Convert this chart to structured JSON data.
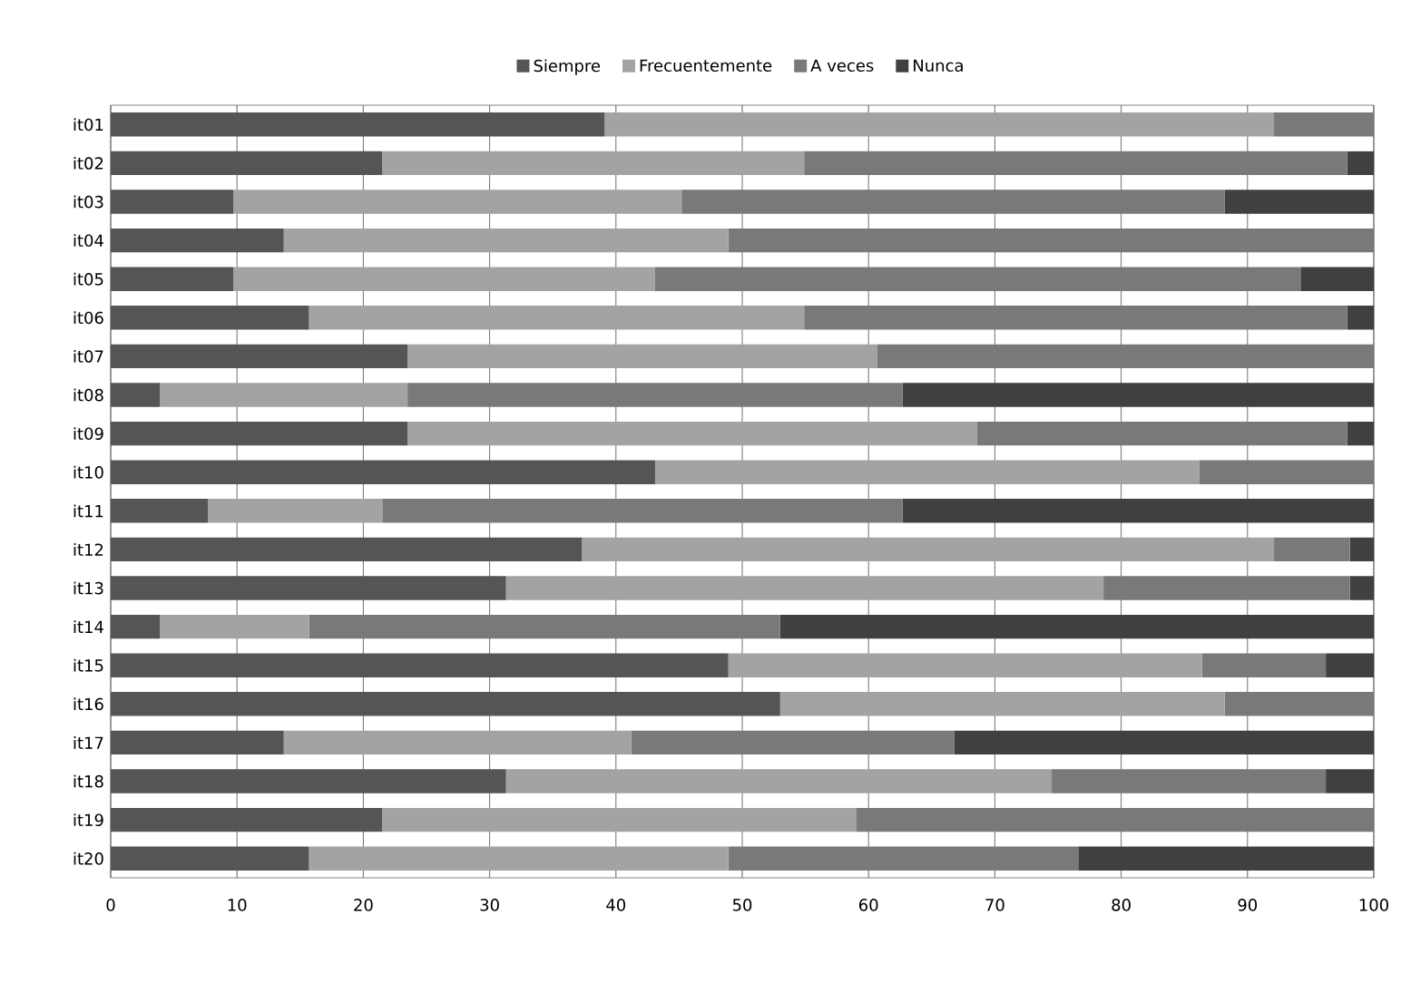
{
  "chart_data": {
    "type": "bar",
    "orientation": "horizontal",
    "stacked": true,
    "grid": "x",
    "legend": "top",
    "categories": [
      "it01",
      "it02",
      "it03",
      "it04",
      "it05",
      "it06",
      "it07",
      "it08",
      "it09",
      "it10",
      "it11",
      "it12",
      "it13",
      "it14",
      "it15",
      "it16",
      "it17",
      "it18",
      "it19",
      "it20"
    ],
    "xlim": [
      0,
      100
    ],
    "xticks": [
      0,
      10,
      20,
      30,
      40,
      50,
      60,
      70,
      80,
      90,
      100
    ],
    "series": [
      {
        "name": "Siempre",
        "color": "#555555",
        "values": [
          39.1,
          21.5,
          9.7,
          13.7,
          9.7,
          15.7,
          23.5,
          3.9,
          23.5,
          43.1,
          7.7,
          37.3,
          31.3,
          3.9,
          48.9,
          53.0,
          13.7,
          31.3,
          21.5,
          15.7
        ]
      },
      {
        "name": "Frecuentemente",
        "color": "#a3a3a3",
        "values": [
          53.0,
          33.4,
          35.5,
          35.2,
          33.4,
          39.2,
          37.2,
          19.6,
          45.1,
          43.1,
          13.8,
          54.8,
          47.3,
          11.8,
          37.5,
          35.2,
          27.5,
          43.2,
          37.5,
          33.2
        ]
      },
      {
        "name": "A veces",
        "color": "#797979",
        "values": [
          7.9,
          43.0,
          43.0,
          51.1,
          51.1,
          43.0,
          39.3,
          39.2,
          29.3,
          13.8,
          41.2,
          6.0,
          19.5,
          37.3,
          9.8,
          11.8,
          25.6,
          21.7,
          41.0,
          27.7
        ]
      },
      {
        "name": "Nunca",
        "color": "#404040",
        "values": [
          0,
          2.1,
          11.8,
          0,
          5.8,
          2.1,
          0,
          37.3,
          2.1,
          0,
          37.3,
          1.9,
          1.9,
          47.0,
          3.8,
          0,
          33.2,
          3.8,
          0,
          23.4
        ]
      }
    ]
  }
}
